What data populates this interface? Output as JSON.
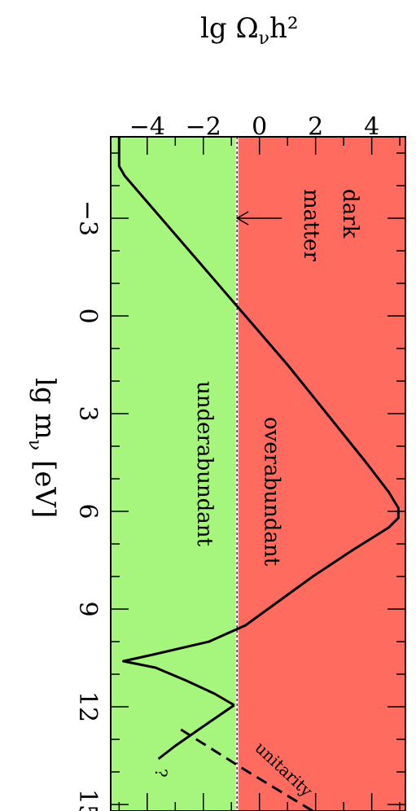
{
  "chart_data": {
    "type": "line",
    "x": {
      "label": "lg m",
      "label_subscript": "ν",
      "label_unit": "[eV]",
      "range": [
        -5.5,
        15.2
      ],
      "ticks": [
        -3,
        0,
        3,
        6,
        9,
        12,
        15
      ],
      "tick_labels": [
        "−3",
        "0",
        "3",
        "6",
        "9",
        "12",
        "15"
      ]
    },
    "y": {
      "label": "lg Ω",
      "label_subscript": "ν",
      "label_suffix": "h²",
      "range": [
        -5.3,
        5.2
      ],
      "ticks": [
        -4,
        -2,
        0,
        2,
        4
      ],
      "tick_labels": [
        "−4",
        "−2",
        "0",
        "2",
        "4"
      ]
    },
    "reference_line": {
      "y": -0.8
    },
    "regions": [
      {
        "name": "overabundant",
        "label": "overabundant",
        "y_from": -0.8,
        "y_to": 5.2,
        "color": "#ff6b5e"
      },
      {
        "name": "underabundant",
        "label": "underabundant",
        "y_from": -5.3,
        "y_to": -0.8,
        "color": "#a6f57d"
      }
    ],
    "series": [
      {
        "style": "solid",
        "points": [
          [
            -5.5,
            -5.0
          ],
          [
            -4.6,
            -5.0
          ],
          [
            -4.3,
            -4.8
          ],
          [
            -3.5,
            -4.0
          ],
          [
            -2.5,
            -3.0
          ],
          [
            -1.5,
            -2.0
          ],
          [
            0.0,
            -0.5
          ],
          [
            1.5,
            1.0
          ],
          [
            3.0,
            2.4
          ],
          [
            4.5,
            3.8
          ],
          [
            5.4,
            4.6
          ],
          [
            5.9,
            4.95
          ],
          [
            6.2,
            4.95
          ],
          [
            6.5,
            4.6
          ],
          [
            7.2,
            3.3
          ],
          [
            8.0,
            1.9
          ],
          [
            9.0,
            0.3
          ],
          [
            9.5,
            -0.5
          ],
          [
            10.0,
            -1.8
          ],
          [
            10.4,
            -3.8
          ],
          [
            10.6,
            -4.85
          ],
          [
            10.8,
            -3.7
          ],
          [
            11.2,
            -2.6
          ],
          [
            11.6,
            -1.6
          ],
          [
            11.95,
            -0.9
          ]
        ]
      },
      {
        "style": "solid",
        "points": [
          [
            11.95,
            -0.9
          ],
          [
            12.6,
            -2.0
          ],
          [
            13.2,
            -3.0
          ],
          [
            13.6,
            -3.6
          ]
        ]
      },
      {
        "style": "dashed",
        "points": [
          [
            12.7,
            -2.8
          ],
          [
            14.0,
            -0.4
          ],
          [
            15.2,
            1.9
          ]
        ]
      }
    ],
    "annotations": [
      {
        "text": "dark matter",
        "arrow_to": {
          "x": -3.0,
          "y": -0.8
        }
      },
      {
        "text": "unitarity"
      },
      {
        "text": "?"
      }
    ],
    "regions_labels": [
      "overabundant",
      "underabundant"
    ]
  },
  "labels": {
    "overabundant": "overabundant",
    "underabundant": "underabundant",
    "dark_line1": "dark",
    "dark_line2": "matter",
    "unitarity": "unitarity",
    "question": "?",
    "y_title_main": "lg Ω",
    "y_title_sub": "ν",
    "y_title_suffix": "h²",
    "x_title_main": "lg m",
    "x_title_sub": "ν",
    "x_title_unit": "[eV]"
  },
  "colors": {
    "overabundant": "#ff6b5e",
    "underabundant": "#a6f57d",
    "line": "#000000"
  }
}
